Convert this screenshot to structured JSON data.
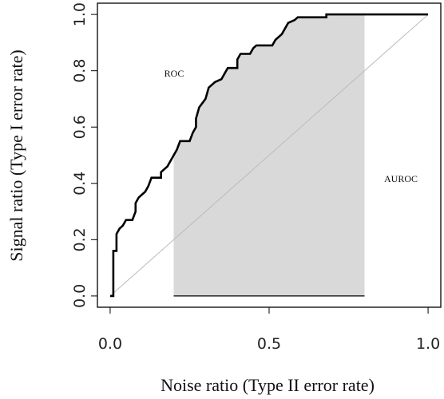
{
  "chart_data": {
    "type": "line",
    "xlabel": "Noise ratio (Type II error rate)",
    "ylabel": "Signal ratio (Type I error rate)",
    "annotations": [
      "ROC",
      "AUROC"
    ],
    "xlim": [
      -0.04,
      1.04
    ],
    "ylim": [
      -0.04,
      1.04
    ],
    "xticks": [
      {
        "value": 0,
        "label": "0.0"
      },
      0.5,
      {
        "value": 1,
        "label": "1.0"
      }
    ],
    "yticks": [
      {
        "value": 0,
        "label": "0.0"
      },
      0.2,
      0.4,
      0.6,
      0.8,
      {
        "value": 1,
        "label": "1.0"
      }
    ],
    "shade_range": [
      0.2,
      0.8
    ],
    "shade_color": "#d9d9d9",
    "diagonal": {
      "x": [
        0,
        1
      ],
      "y": [
        0,
        1
      ],
      "color": "#bbbbbb"
    },
    "series": [
      {
        "color": "#000000",
        "x": [
          0,
          0.01,
          0.01,
          0.02,
          0.02,
          0.03,
          0.04,
          0.05,
          0.07,
          0.08,
          0.08,
          0.09,
          0.1,
          0.11,
          0.12,
          0.13,
          0.16,
          0.16,
          0.18,
          0.19,
          0.2,
          0.21,
          0.22,
          0.25,
          0.26,
          0.27,
          0.27,
          0.28,
          0.3,
          0.31,
          0.33,
          0.35,
          0.36,
          0.37,
          0.4,
          0.4,
          0.41,
          0.44,
          0.45,
          0.46,
          0.51,
          0.52,
          0.54,
          0.55,
          0.56,
          0.58,
          0.59,
          0.68,
          0.68,
          1.0
        ],
        "values": [
          0,
          0,
          0.16,
          0.16,
          0.22,
          0.24,
          0.25,
          0.27,
          0.27,
          0.3,
          0.33,
          0.35,
          0.36,
          0.37,
          0.39,
          0.42,
          0.42,
          0.44,
          0.46,
          0.48,
          0.5,
          0.52,
          0.55,
          0.55,
          0.58,
          0.6,
          0.63,
          0.67,
          0.7,
          0.74,
          0.76,
          0.77,
          0.79,
          0.81,
          0.81,
          0.84,
          0.86,
          0.86,
          0.88,
          0.89,
          0.89,
          0.91,
          0.93,
          0.95,
          0.97,
          0.98,
          0.99,
          0.99,
          1.0,
          1.0
        ]
      }
    ]
  }
}
